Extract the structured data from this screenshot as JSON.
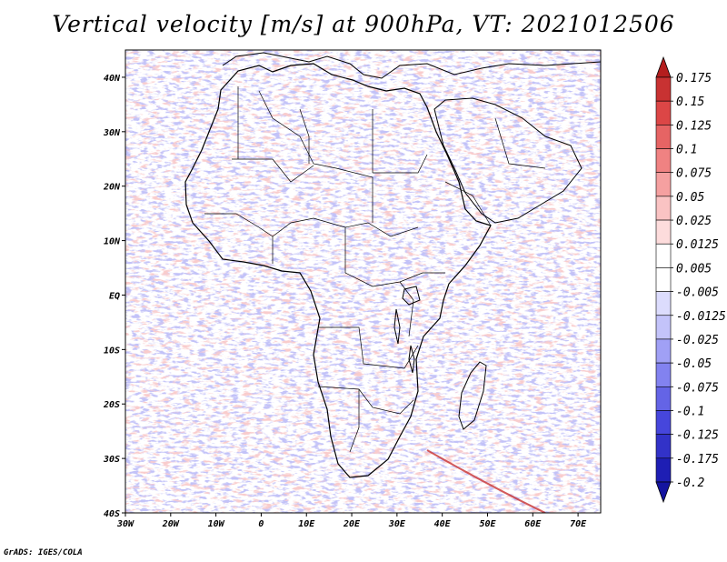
{
  "title": "Vertical velocity [m/s] at 900hPa, VT: 2021012506",
  "footer": "GrADS: IGES/COLA",
  "map": {
    "lon_range": [
      -30,
      75
    ],
    "lat_range": [
      -40,
      45
    ],
    "lon_ticks": [
      {
        "lon": -30,
        "label": "30W"
      },
      {
        "lon": -20,
        "label": "20W"
      },
      {
        "lon": -10,
        "label": "10W"
      },
      {
        "lon": 0,
        "label": "0"
      },
      {
        "lon": 10,
        "label": "10E"
      },
      {
        "lon": 20,
        "label": "20E"
      },
      {
        "lon": 30,
        "label": "30E"
      },
      {
        "lon": 40,
        "label": "40E"
      },
      {
        "lon": 50,
        "label": "50E"
      },
      {
        "lon": 60,
        "label": "60E"
      },
      {
        "lon": 70,
        "label": "70E"
      }
    ],
    "lat_ticks": [
      {
        "lat": 40,
        "label": "40N"
      },
      {
        "lat": 30,
        "label": "30N"
      },
      {
        "lat": 20,
        "label": "20N"
      },
      {
        "lat": 10,
        "label": "10N"
      },
      {
        "lat": 0,
        "label": "EQ"
      },
      {
        "lat": -10,
        "label": "10S"
      },
      {
        "lat": -20,
        "label": "20S"
      },
      {
        "lat": -30,
        "label": "30S"
      },
      {
        "lat": -40,
        "label": "40S"
      }
    ]
  },
  "colorbar": {
    "labels": [
      "0.175",
      "0.15",
      "0.125",
      "0.1",
      "0.075",
      "0.05",
      "0.025",
      "0.0125",
      "0.005",
      "-0.005",
      "-0.0125",
      "-0.025",
      "-0.05",
      "-0.075",
      "-0.1",
      "-0.125",
      "-0.175",
      "-0.2"
    ],
    "colors": [
      "#b41e1e",
      "#c83232",
      "#dc4646",
      "#e66464",
      "#f08282",
      "#f5a0a0",
      "#fac3c3",
      "#fddcdc",
      "#ffffff",
      "#ffffff",
      "#dcdcfd",
      "#c3c3fa",
      "#a0a0f5",
      "#8282f0",
      "#6464e6",
      "#4646dc",
      "#3232c8",
      "#1e1eb4",
      "#1414a0"
    ]
  }
}
